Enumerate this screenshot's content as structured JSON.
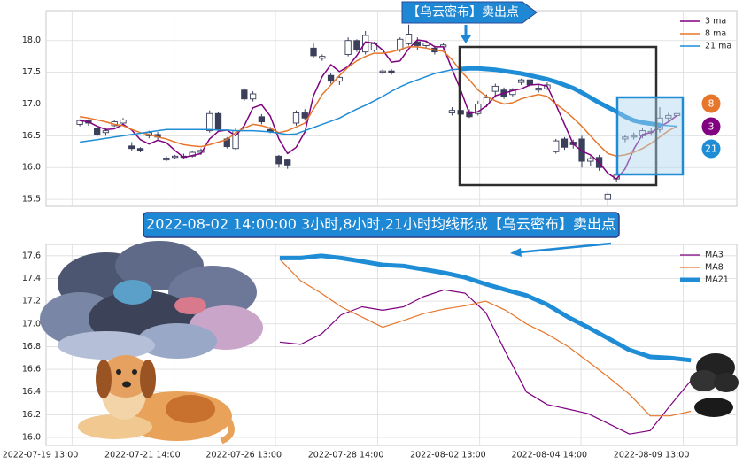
{
  "chart_data": [
    {
      "type": "candlestick",
      "annotation": "【乌云密布】卖出点",
      "open": [
        16.68,
        16.74,
        16.62,
        16.55,
        16.66,
        16.7,
        16.34,
        16.3,
        16.5,
        16.52,
        16.12,
        16.16,
        16.18,
        16.18,
        16.24,
        16.58,
        16.85,
        16.45,
        16.3,
        17.22,
        17.08,
        16.8,
        16.6,
        16.18,
        16.12,
        16.7,
        16.86,
        17.88,
        17.72,
        17.45,
        17.36,
        17.78,
        18.0,
        17.82,
        17.85,
        17.5,
        17.52,
        17.85,
        17.95,
        17.98,
        17.92,
        17.88,
        17.9,
        16.86,
        16.9,
        16.88,
        16.85,
        17.0,
        17.2,
        17.22,
        17.15,
        17.34,
        17.38,
        17.22,
        17.24,
        16.25,
        16.45,
        16.4,
        16.45,
        16.1,
        16.16,
        15.5,
        15.82,
        16.45,
        16.48,
        16.5,
        16.55,
        16.6,
        16.78,
        16.82
      ],
      "high": [
        16.76,
        16.76,
        16.65,
        16.62,
        16.74,
        16.78,
        16.4,
        16.32,
        16.58,
        16.56,
        16.18,
        16.2,
        16.22,
        16.26,
        16.3,
        16.9,
        16.88,
        16.48,
        16.62,
        17.25,
        17.2,
        16.84,
        16.64,
        16.2,
        16.14,
        16.9,
        16.92,
        17.95,
        17.78,
        17.48,
        17.45,
        18.05,
        18.02,
        18.15,
        17.98,
        17.55,
        17.55,
        18.05,
        18.25,
        18.05,
        17.98,
        17.92,
        17.96,
        16.95,
        16.95,
        16.92,
        17.05,
        17.15,
        17.32,
        17.26,
        17.25,
        17.4,
        17.4,
        17.3,
        17.34,
        16.45,
        16.48,
        16.44,
        16.5,
        16.18,
        16.2,
        15.62,
        15.92,
        16.52,
        16.55,
        16.62,
        16.62,
        16.95,
        16.86,
        16.88
      ],
      "low": [
        16.65,
        16.66,
        16.48,
        16.5,
        16.64,
        16.68,
        16.26,
        16.24,
        16.46,
        16.44,
        16.1,
        16.14,
        16.14,
        16.16,
        16.2,
        16.55,
        16.58,
        16.3,
        16.28,
        17.05,
        17.04,
        16.68,
        16.54,
        16.0,
        15.98,
        16.66,
        16.74,
        17.72,
        17.68,
        17.32,
        17.3,
        17.75,
        17.82,
        17.78,
        17.82,
        17.46,
        17.46,
        17.82,
        17.92,
        17.85,
        17.88,
        17.78,
        17.86,
        16.82,
        16.8,
        16.78,
        16.82,
        16.95,
        17.1,
        17.08,
        17.12,
        17.3,
        17.26,
        17.18,
        17.22,
        16.22,
        16.28,
        16.3,
        16.0,
        16.02,
        15.95,
        15.4,
        15.78,
        16.4,
        16.44,
        16.46,
        16.5,
        16.55,
        16.72,
        16.78
      ],
      "close": [
        16.74,
        16.7,
        16.52,
        16.58,
        16.72,
        16.75,
        16.3,
        16.26,
        16.55,
        16.48,
        16.15,
        16.18,
        16.16,
        16.24,
        16.27,
        16.85,
        16.6,
        16.33,
        16.58,
        17.08,
        17.16,
        16.72,
        16.56,
        16.06,
        16.04,
        16.86,
        16.78,
        17.76,
        17.75,
        17.36,
        17.42,
        18.0,
        17.85,
        18.08,
        17.95,
        17.52,
        17.5,
        18.02,
        18.1,
        17.92,
        17.96,
        17.82,
        17.93,
        16.9,
        16.84,
        16.8,
        17.0,
        17.1,
        17.28,
        17.12,
        17.22,
        17.38,
        17.3,
        17.25,
        17.3,
        16.42,
        16.32,
        16.36,
        16.1,
        16.14,
        16.0,
        15.58,
        15.88,
        16.48,
        16.5,
        16.58,
        16.57,
        16.78,
        16.82,
        16.85
      ],
      "series": [
        {
          "name": "3 ma",
          "color": "#800080",
          "end_label": "3",
          "values": [
            16.74,
            16.72,
            16.65,
            16.6,
            16.61,
            16.68,
            16.59,
            16.44,
            16.37,
            16.43,
            16.39,
            16.27,
            16.16,
            16.19,
            16.22,
            16.45,
            16.57,
            16.59,
            16.5,
            16.66,
            16.94,
            16.99,
            16.81,
            16.45,
            16.22,
            16.32,
            16.56,
            17.13,
            17.43,
            17.62,
            17.51,
            17.59,
            17.76,
            17.98,
            17.96,
            17.85,
            17.66,
            17.68,
            17.87,
            18.01,
            17.99,
            17.9,
            17.9,
            17.55,
            17.22,
            16.85,
            16.88,
            16.97,
            17.13,
            17.17,
            17.21,
            17.24,
            17.3,
            17.31,
            17.28,
            16.99,
            16.68,
            16.37,
            16.26,
            16.2,
            16.08,
            15.91,
            15.82,
            15.98,
            16.29,
            16.52,
            16.55,
            16.64,
            16.72,
            16.82
          ]
        },
        {
          "name": "8 ma",
          "color": "#e6762c",
          "end_label": "8",
          "values": [
            16.8,
            16.78,
            16.75,
            16.72,
            16.68,
            16.66,
            16.6,
            16.55,
            16.52,
            16.48,
            16.45,
            16.4,
            16.36,
            16.34,
            16.33,
            16.36,
            16.4,
            16.44,
            16.55,
            16.62,
            16.68,
            16.66,
            16.62,
            16.55,
            16.58,
            16.64,
            16.7,
            16.92,
            17.15,
            17.3,
            17.45,
            17.58,
            17.68,
            17.75,
            17.8,
            17.8,
            17.82,
            17.86,
            17.9,
            17.9,
            17.88,
            17.85,
            17.83,
            17.7,
            17.52,
            17.38,
            17.22,
            17.12,
            17.05,
            17.0,
            17.02,
            17.08,
            17.12,
            17.15,
            17.12,
            17.0,
            16.9,
            16.78,
            16.65,
            16.5,
            16.35,
            16.22,
            16.18,
            16.2,
            16.24,
            16.3,
            16.38,
            16.48,
            16.58,
            16.65
          ]
        },
        {
          "name": "21 ma",
          "color": "#1f8dd6",
          "end_label": "21",
          "values": [
            16.4,
            16.42,
            16.44,
            16.46,
            16.48,
            16.5,
            16.52,
            16.54,
            16.56,
            16.58,
            16.6,
            16.6,
            16.6,
            16.6,
            16.6,
            16.6,
            16.59,
            16.59,
            16.58,
            16.58,
            16.58,
            16.57,
            16.56,
            16.54,
            16.52,
            16.53,
            16.58,
            16.63,
            16.68,
            16.73,
            16.78,
            16.85,
            16.92,
            16.98,
            17.05,
            17.12,
            17.2,
            17.27,
            17.33,
            17.38,
            17.43,
            17.48,
            17.51,
            17.54,
            17.55,
            17.56,
            17.56,
            17.55,
            17.54,
            17.52,
            17.5,
            17.48,
            17.45,
            17.42,
            17.39,
            17.35,
            17.3,
            17.25,
            17.18,
            17.1,
            17.02,
            16.95,
            16.88,
            16.8,
            16.74,
            16.71,
            16.69,
            16.67,
            16.66,
            16.65
          ]
        }
      ],
      "xlim": [
        -3.9,
        75.9
      ],
      "xticks": [
        -0.9,
        10.9,
        22.6,
        34.4,
        46.2,
        57.9,
        69.7
      ],
      "ylim": [
        15.39,
        18.47
      ],
      "yticks": [
        15.5,
        {
          "value": 16,
          "label": "16.0"
        },
        16.5,
        {
          "value": 17,
          "label": "17.0"
        },
        17.5,
        {
          "value": 18,
          "label": "18.0"
        }
      ],
      "grid": true
    },
    {
      "type": "line",
      "annotation": "2022-08-02 14:00:00 3小时,8小时,21小时均线形成【乌云密布】卖出点",
      "x": [
        23.1,
        25.5,
        27.9,
        30.2,
        32.6,
        35.0,
        37.4,
        39.7,
        42.1,
        44.5,
        46.9,
        49.2,
        51.6,
        54.0,
        56.4,
        58.7,
        61.1,
        63.5,
        65.9,
        68.2,
        70.6
      ],
      "series": [
        {
          "name": "MA3",
          "color": "#800080",
          "linewidth": 1.2,
          "values": [
            16.84,
            16.82,
            16.91,
            17.08,
            17.15,
            17.12,
            17.15,
            17.24,
            17.3,
            17.27,
            17.1,
            16.75,
            16.4,
            16.29,
            16.25,
            16.21,
            16.12,
            16.03,
            16.06,
            16.28,
            16.5
          ]
        },
        {
          "name": "MA8",
          "color": "#e6762c",
          "linewidth": 1.2,
          "values": [
            17.57,
            17.38,
            17.27,
            17.15,
            17.06,
            16.97,
            17.03,
            17.09,
            17.13,
            17.16,
            17.2,
            17.12,
            17.0,
            16.91,
            16.8,
            16.67,
            16.53,
            16.38,
            16.19,
            16.19,
            16.23
          ]
        },
        {
          "name": "MA21",
          "color": "#1f8dd6",
          "linewidth": 5,
          "values": [
            17.58,
            17.58,
            17.6,
            17.58,
            17.55,
            17.52,
            17.51,
            17.48,
            17.45,
            17.41,
            17.35,
            17.3,
            17.25,
            17.17,
            17.06,
            16.97,
            16.87,
            16.77,
            16.71,
            16.7,
            16.68
          ]
        }
      ],
      "xlim": [
        -3.9,
        75.9
      ],
      "xticks": [
        {
          "value": -0.9,
          "label": "2022-07-19 13:00"
        },
        {
          "value": 10.9,
          "label": "2022-07-21 14:00"
        },
        {
          "value": 22.6,
          "label": "2022-07-26 13:00"
        },
        {
          "value": 34.4,
          "label": "2022-07-28 14:00"
        },
        {
          "value": 46.2,
          "label": "2022-08-02 13:00"
        },
        {
          "value": 57.9,
          "label": "2022-08-04 14:00"
        },
        {
          "value": 69.7,
          "label": "2022-08-09 13:00"
        }
      ],
      "ylim": [
        15.93,
        17.7
      ],
      "yticks": [
        {
          "value": 16,
          "label": "16.0"
        },
        16.2,
        16.4,
        16.6,
        16.8,
        {
          "value": 17,
          "label": "17.0"
        },
        17.2,
        17.4,
        17.6
      ],
      "grid": true
    }
  ]
}
